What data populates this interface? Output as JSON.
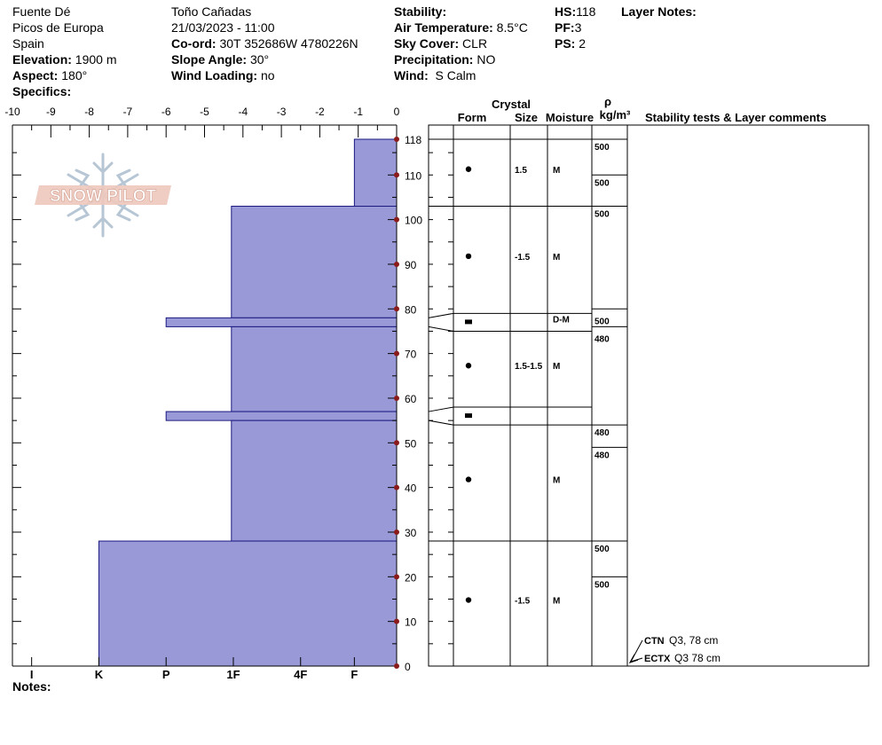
{
  "header": {
    "location_name": "Fuente Dé",
    "region": "Picos de Europa",
    "country": "Spain",
    "elevation_label": "Elevation:",
    "elevation_value": "1900 m",
    "aspect_label": "Aspect:",
    "aspect_value": "180°",
    "specifics_label": "Specifics:",
    "observer": "Toño Cañadas",
    "datetime": "21/03/2023 - 11:00",
    "coord_label": "Co-ord:",
    "coord_value": "30T 352686W 4780226N",
    "slope_label": "Slope Angle:",
    "slope_value": "30°",
    "wind_loading_label": "Wind Loading:",
    "wind_loading_value": "no",
    "stability_label": "Stability:",
    "air_temp_label": "Air Temperature:",
    "air_temp_value": "8.5°C",
    "sky_label": "Sky Cover:",
    "sky_value": "CLR",
    "precip_label": "Precipitation:",
    "precip_value": "NO",
    "wind_label": "Wind:",
    "wind_value": " S Calm",
    "hs_label": "HS:",
    "hs_value": "118",
    "pf_label": "PF:",
    "pf_value": "3",
    "ps_label": "PS:",
    "ps_value": "2",
    "layer_notes_label": "Layer Notes:"
  },
  "notes_label": "Notes:",
  "logo_text": "SNOW PILOT",
  "columns": {
    "crystal": "Crystal",
    "form": "Form",
    "size": "Size",
    "moisture": "Moisture",
    "rho": "ρ",
    "density_unit": "kg/m³",
    "stability": "Stability tests & Layer comments"
  },
  "colors": {
    "hardness_fill": "#9999d8",
    "hardness_stroke": "#1a1a80",
    "marker": "#8b1a1a"
  },
  "chart_data": {
    "type": "bar",
    "temperature_axis": {
      "range": [
        -10,
        0
      ],
      "ticks": [
        "-10",
        "-9",
        "-8",
        "-7",
        "-6",
        "-5",
        "-4",
        "-3",
        "-2",
        "-1",
        "0"
      ]
    },
    "height_axis": {
      "range": [
        0,
        118
      ],
      "ticks": [
        "0",
        "10",
        "20",
        "30",
        "40",
        "50",
        "60",
        "70",
        "80",
        "90",
        "100",
        "110",
        "118"
      ],
      "tick_values": [
        0,
        10,
        20,
        30,
        40,
        50,
        60,
        70,
        80,
        90,
        100,
        110,
        118
      ]
    },
    "hardness_axis": {
      "ticks": [
        "I",
        "K",
        "P",
        "1F",
        "4F",
        "F"
      ],
      "tick_positions_temp": [
        -9.5,
        -7.75,
        -6,
        -4.25,
        -2.5,
        -1.1
      ]
    },
    "hardness_layers": [
      {
        "bottom": 103,
        "top": 118,
        "hardness": "F",
        "hardness_value": -1.1
      },
      {
        "bottom": 78,
        "top": 103,
        "hardness": "1F",
        "hardness_value": -4.3
      },
      {
        "bottom": 76,
        "top": 78,
        "hardness": "P",
        "hardness_value": -6.0
      },
      {
        "bottom": 57,
        "top": 76,
        "hardness": "1F",
        "hardness_value": -4.3
      },
      {
        "bottom": 55,
        "top": 57,
        "hardness": "P",
        "hardness_value": -6.0
      },
      {
        "bottom": 28,
        "top": 55,
        "hardness": "1F",
        "hardness_value": -4.3
      },
      {
        "bottom": 0,
        "top": 28,
        "hardness": "K",
        "hardness_value": -7.75
      }
    ],
    "grain_layers": [
      {
        "top": 118,
        "bottom": 103,
        "form": "dot",
        "size": "1.5",
        "moisture": "M"
      },
      {
        "top": 103,
        "bottom": 79,
        "form": "dot",
        "size": "-1.5",
        "moisture": "M"
      },
      {
        "top": 79,
        "bottom": 75,
        "form": "square",
        "size": "",
        "moisture": "D-M"
      },
      {
        "top": 75,
        "bottom": 58,
        "form": "dot",
        "size": "1.5-1.5",
        "moisture": "M"
      },
      {
        "top": 58,
        "bottom": 54,
        "form": "square",
        "size": "",
        "moisture": ""
      },
      {
        "top": 54,
        "bottom": 28,
        "form": "dot",
        "size": "",
        "moisture": "M"
      },
      {
        "top": 28,
        "bottom": 0,
        "form": "dot",
        "size": "-1.5",
        "moisture": "M"
      }
    ],
    "densities": [
      {
        "label": "500",
        "height": 118
      },
      {
        "label": "500",
        "height": 110
      },
      {
        "label": "500",
        "height": 103
      },
      {
        "label": "500",
        "height": 79
      },
      {
        "label": "480",
        "height": 75
      },
      {
        "label": "480",
        "height": 54
      },
      {
        "label": "480",
        "height": 49
      },
      {
        "label": "500",
        "height": 28
      },
      {
        "label": "500",
        "height": 20
      }
    ],
    "density_lines": [
      118,
      110,
      103,
      80,
      76,
      54,
      49,
      28,
      20
    ],
    "stability_tests": [
      {
        "name": "CTN",
        "result": "Q3, 78 cm"
      },
      {
        "name": "ECTX",
        "result": "Q3 78 cm"
      }
    ]
  }
}
